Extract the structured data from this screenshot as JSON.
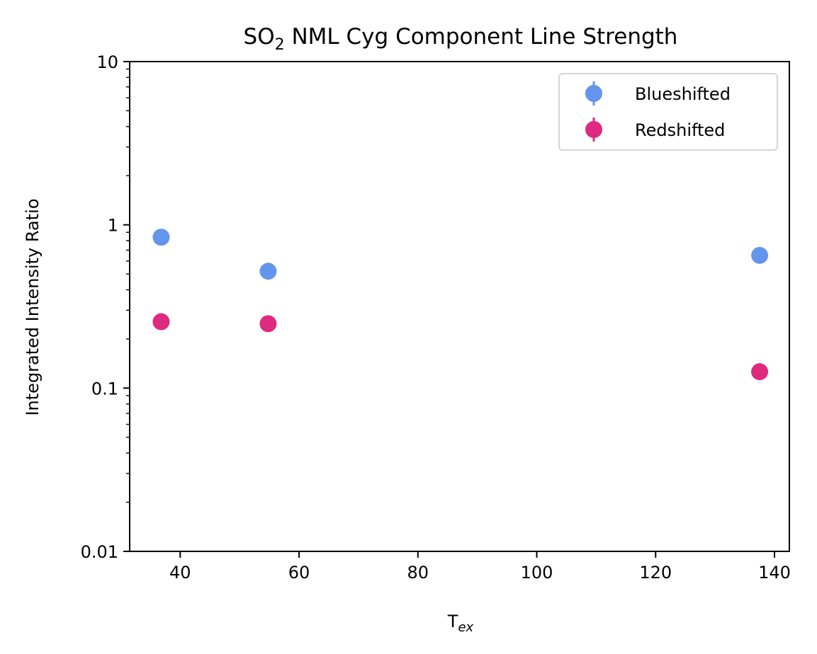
{
  "chart_data": {
    "type": "scatter",
    "title": {
      "prefix": "SO",
      "subscript": "2",
      "suffix": " NML Cyg Component Line Strength"
    },
    "xlabel": {
      "main": "T",
      "subscript": "ex"
    },
    "ylabel": "Integrated Intensity Ratio",
    "xlim": [
      31.5,
      142.5
    ],
    "ylim": [
      0.01,
      10
    ],
    "yscale": "log",
    "x_ticks": [
      40,
      60,
      80,
      100,
      120,
      140
    ],
    "x_tick_labels": [
      "40",
      "60",
      "80",
      "100",
      "120",
      "140"
    ],
    "y_ticks": [
      0.01,
      0.1,
      1,
      10
    ],
    "y_tick_labels": [
      "0.01",
      "0.1",
      "1",
      "10"
    ],
    "grid": false,
    "legend_position": "top-right",
    "series": [
      {
        "name": "Blueshifted",
        "color": "#6495ED",
        "x": [
          36.8,
          54.8,
          137.5
        ],
        "y": [
          0.84,
          0.52,
          0.65
        ]
      },
      {
        "name": "Redshifted",
        "color": "#DE2A7F",
        "x": [
          36.8,
          54.8,
          137.5
        ],
        "y": [
          0.255,
          0.248,
          0.126
        ]
      }
    ]
  }
}
